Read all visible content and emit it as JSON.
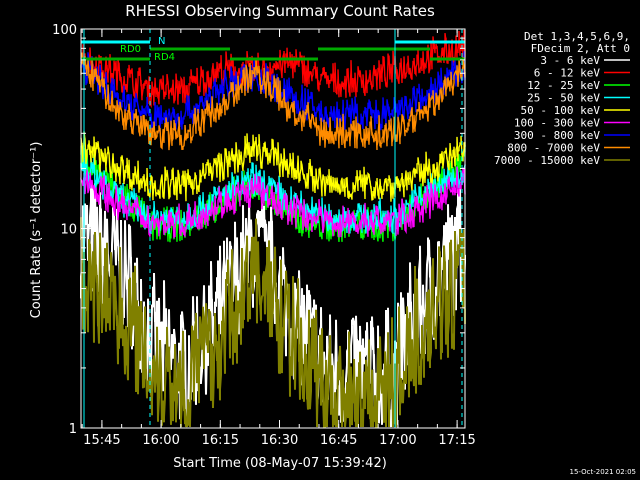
{
  "chart_data": {
    "type": "line",
    "title": "RHESSI Observing Summary Count Rates",
    "xlabel": "Start Time (08-May-07 15:39:42)",
    "ylabel": "Count Rate (s⁻¹ detector⁻¹)",
    "yscale": "log",
    "ylim": [
      1,
      100
    ],
    "xlim": [
      "15:39:42",
      "17:17:00"
    ],
    "x_ticks": [
      "15:45",
      "16:00",
      "16:15",
      "16:30",
      "16:45",
      "17:00",
      "17:15"
    ],
    "y_ticks": [
      "1",
      "10",
      "100"
    ],
    "grid": false,
    "legend_position": "right",
    "legend_header": [
      "Det 1,3,4,5,6,9,",
      "FDecim 2, Att 0"
    ],
    "series": [
      {
        "name": "3 - 6 keV",
        "color": "#ffffff",
        "y": [
          8.5,
          6.5,
          2.5,
          1.8,
          3.5,
          7.5,
          3.5,
          1.8,
          1.8,
          1.8,
          4.5,
          8
        ]
      },
      {
        "name": "6 - 12 keV",
        "color": "#ff0000",
        "y": [
          70,
          58,
          48,
          48,
          60,
          60,
          66,
          53,
          53,
          60,
          70,
          80
        ]
      },
      {
        "name": "12 - 25 keV",
        "color": "#00ff00",
        "y": [
          22,
          15,
          10,
          10,
          13,
          16,
          11,
          10,
          10,
          10,
          15,
          21
        ]
      },
      {
        "name": "25 - 50 keV",
        "color": "#00ffff",
        "y": [
          20,
          14,
          11,
          11,
          14,
          17,
          13,
          11,
          11,
          11,
          15,
          19
        ]
      },
      {
        "name": "50 - 100 keV",
        "color": "#ffff00",
        "y": [
          25,
          20,
          16,
          16,
          20,
          24,
          20,
          16,
          16,
          16,
          19,
          24
        ]
      },
      {
        "name": "100 - 300 keV",
        "color": "#ff00ff",
        "y": [
          18,
          13,
          10.5,
          10.5,
          13,
          15,
          12,
          10.5,
          10.5,
          10.5,
          13,
          17
        ]
      },
      {
        "name": "300 - 800 keV",
        "color": "#0000ff",
        "y": [
          64,
          45,
          35,
          36,
          48,
          58,
          44,
          36,
          36,
          36,
          46,
          62
        ]
      },
      {
        "name": "800 - 7000 keV",
        "color": "#ff8c00",
        "y": [
          66,
          38,
          29,
          29,
          40,
          58,
          38,
          29,
          29,
          29,
          40,
          60
        ]
      },
      {
        "name": "7000 - 15000 keV",
        "color": "#808000",
        "y": [
          5.5,
          4,
          1.9,
          1.6,
          2.6,
          5.5,
          2.6,
          1.5,
          1.5,
          1.5,
          3.5,
          5
        ]
      }
    ],
    "annotations": [
      "N",
      "RD0",
      "RD4"
    ],
    "footer_date": "15-Oct-2021 02:05"
  }
}
